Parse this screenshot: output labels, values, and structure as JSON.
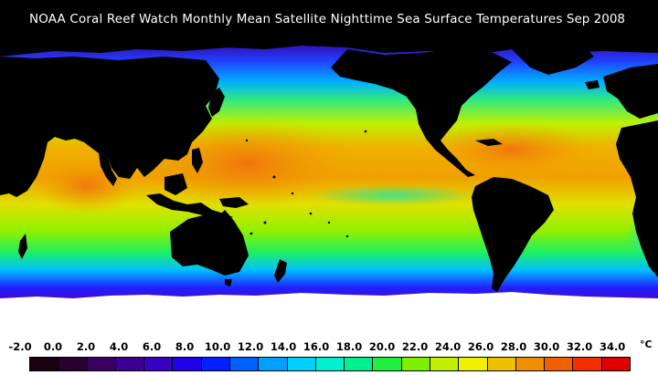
{
  "title": "NOAA Coral Reef Watch Monthly Mean Satellite Nighttime Sea Surface Temperatures",
  "date_label": "Sep 2008",
  "colors": {
    "background": "#000000",
    "ice": "#ffffff",
    "land": "#000000"
  },
  "legend": {
    "unit": "°C",
    "tick_labels": [
      "-2.0",
      "0.0",
      "2.0",
      "4.0",
      "6.0",
      "8.0",
      "10.0",
      "12.0",
      "14.0",
      "16.0",
      "18.0",
      "20.0",
      "22.0",
      "24.0",
      "26.0",
      "28.0",
      "30.0",
      "32.0",
      "34.0"
    ],
    "swatches": [
      "#1a0010",
      "#2a0030",
      "#3a0060",
      "#3a0090",
      "#3800c0",
      "#2000e8",
      "#0020ff",
      "#0060ff",
      "#00a0ff",
      "#00d0ff",
      "#00f0d0",
      "#00f090",
      "#20f040",
      "#80f000",
      "#c0f000",
      "#f0f000",
      "#f0c000",
      "#f09000",
      "#f06000",
      "#f03000",
      "#e00000"
    ]
  }
}
